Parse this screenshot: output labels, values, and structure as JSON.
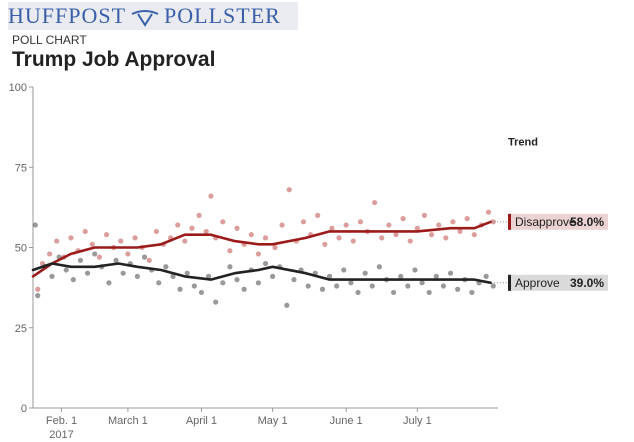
{
  "header": {
    "brand_left": "HUFFPOST",
    "brand_right": "POLLSTER",
    "kicker": "POLL CHART",
    "title": "Trump Job Approval"
  },
  "colors": {
    "disapprove_trend": "#9b1b1b",
    "disapprove_dots": "#c45c5c",
    "approve_trend": "#222222",
    "approve_dots": "#555555",
    "disapprove_label_bg": "#ecd3d3",
    "approve_label_bg": "#dadada",
    "brand": "#3a5fa8"
  },
  "chart_data": {
    "type": "scatter",
    "title": "Trump Job Approval",
    "xlabel": "",
    "ylabel": "",
    "ylim": [
      0,
      100
    ],
    "yticks": [
      0,
      25,
      50,
      75,
      100
    ],
    "xlim": [
      "2017-01-20",
      "2017-08-04"
    ],
    "xticks": [
      {
        "date": "2017-02-01",
        "label": "Feb. 1",
        "sub": "2017"
      },
      {
        "date": "2017-03-01",
        "label": "March 1"
      },
      {
        "date": "2017-04-01",
        "label": "April 1"
      },
      {
        "date": "2017-05-01",
        "label": "May 1"
      },
      {
        "date": "2017-06-01",
        "label": "June 1"
      },
      {
        "date": "2017-07-01",
        "label": "July 1"
      }
    ],
    "legend": {
      "title": "Trend",
      "placement": "right"
    },
    "series": [
      {
        "name": "Disapprove",
        "latest": "58.0%",
        "trend": [
          {
            "x": "2017-01-20",
            "y": 41
          },
          {
            "x": "2017-01-28",
            "y": 45
          },
          {
            "x": "2017-02-05",
            "y": 48
          },
          {
            "x": "2017-02-15",
            "y": 50
          },
          {
            "x": "2017-02-25",
            "y": 50
          },
          {
            "x": "2017-03-05",
            "y": 50
          },
          {
            "x": "2017-03-15",
            "y": 51
          },
          {
            "x": "2017-03-25",
            "y": 54
          },
          {
            "x": "2017-04-05",
            "y": 54
          },
          {
            "x": "2017-04-15",
            "y": 52
          },
          {
            "x": "2017-04-25",
            "y": 51
          },
          {
            "x": "2017-05-01",
            "y": 51
          },
          {
            "x": "2017-05-15",
            "y": 53
          },
          {
            "x": "2017-05-25",
            "y": 55
          },
          {
            "x": "2017-06-05",
            "y": 55
          },
          {
            "x": "2017-06-20",
            "y": 55
          },
          {
            "x": "2017-07-01",
            "y": 55
          },
          {
            "x": "2017-07-15",
            "y": 56
          },
          {
            "x": "2017-07-25",
            "y": 56
          },
          {
            "x": "2017-08-01",
            "y": 58
          }
        ],
        "points": [
          {
            "x": "2017-01-22",
            "y": 37
          },
          {
            "x": "2017-01-24",
            "y": 45
          },
          {
            "x": "2017-01-27",
            "y": 48
          },
          {
            "x": "2017-01-30",
            "y": 52
          },
          {
            "x": "2017-02-02",
            "y": 47
          },
          {
            "x": "2017-02-05",
            "y": 53
          },
          {
            "x": "2017-02-08",
            "y": 49
          },
          {
            "x": "2017-02-11",
            "y": 55
          },
          {
            "x": "2017-02-14",
            "y": 51
          },
          {
            "x": "2017-02-17",
            "y": 47
          },
          {
            "x": "2017-02-20",
            "y": 54
          },
          {
            "x": "2017-02-23",
            "y": 50
          },
          {
            "x": "2017-02-26",
            "y": 52
          },
          {
            "x": "2017-03-01",
            "y": 48
          },
          {
            "x": "2017-03-04",
            "y": 53
          },
          {
            "x": "2017-03-07",
            "y": 50
          },
          {
            "x": "2017-03-10",
            "y": 46
          },
          {
            "x": "2017-03-13",
            "y": 55
          },
          {
            "x": "2017-03-16",
            "y": 51
          },
          {
            "x": "2017-03-19",
            "y": 53
          },
          {
            "x": "2017-03-22",
            "y": 57
          },
          {
            "x": "2017-03-25",
            "y": 52
          },
          {
            "x": "2017-03-28",
            "y": 56
          },
          {
            "x": "2017-03-31",
            "y": 60
          },
          {
            "x": "2017-04-03",
            "y": 55
          },
          {
            "x": "2017-04-05",
            "y": 66
          },
          {
            "x": "2017-04-07",
            "y": 53
          },
          {
            "x": "2017-04-10",
            "y": 58
          },
          {
            "x": "2017-04-13",
            "y": 49
          },
          {
            "x": "2017-04-16",
            "y": 56
          },
          {
            "x": "2017-04-19",
            "y": 51
          },
          {
            "x": "2017-04-22",
            "y": 54
          },
          {
            "x": "2017-04-25",
            "y": 48
          },
          {
            "x": "2017-04-28",
            "y": 53
          },
          {
            "x": "2017-05-02",
            "y": 50
          },
          {
            "x": "2017-05-05",
            "y": 57
          },
          {
            "x": "2017-05-08",
            "y": 68
          },
          {
            "x": "2017-05-11",
            "y": 52
          },
          {
            "x": "2017-05-14",
            "y": 58
          },
          {
            "x": "2017-05-17",
            "y": 54
          },
          {
            "x": "2017-05-20",
            "y": 60
          },
          {
            "x": "2017-05-23",
            "y": 51
          },
          {
            "x": "2017-05-26",
            "y": 56
          },
          {
            "x": "2017-05-29",
            "y": 53
          },
          {
            "x": "2017-06-01",
            "y": 57
          },
          {
            "x": "2017-06-04",
            "y": 52
          },
          {
            "x": "2017-06-07",
            "y": 58
          },
          {
            "x": "2017-06-10",
            "y": 55
          },
          {
            "x": "2017-06-13",
            "y": 64
          },
          {
            "x": "2017-06-16",
            "y": 53
          },
          {
            "x": "2017-06-19",
            "y": 57
          },
          {
            "x": "2017-06-22",
            "y": 54
          },
          {
            "x": "2017-06-25",
            "y": 59
          },
          {
            "x": "2017-06-28",
            "y": 52
          },
          {
            "x": "2017-07-01",
            "y": 56
          },
          {
            "x": "2017-07-04",
            "y": 60
          },
          {
            "x": "2017-07-07",
            "y": 54
          },
          {
            "x": "2017-07-10",
            "y": 57
          },
          {
            "x": "2017-07-13",
            "y": 53
          },
          {
            "x": "2017-07-16",
            "y": 58
          },
          {
            "x": "2017-07-19",
            "y": 55
          },
          {
            "x": "2017-07-22",
            "y": 59
          },
          {
            "x": "2017-07-25",
            "y": 54
          },
          {
            "x": "2017-07-28",
            "y": 57
          },
          {
            "x": "2017-07-31",
            "y": 61
          },
          {
            "x": "2017-08-02",
            "y": 58
          }
        ]
      },
      {
        "name": "Approve",
        "latest": "39.0%",
        "trend": [
          {
            "x": "2017-01-20",
            "y": 43
          },
          {
            "x": "2017-01-28",
            "y": 45
          },
          {
            "x": "2017-02-05",
            "y": 44
          },
          {
            "x": "2017-02-15",
            "y": 44
          },
          {
            "x": "2017-02-25",
            "y": 45
          },
          {
            "x": "2017-03-05",
            "y": 44
          },
          {
            "x": "2017-03-15",
            "y": 43
          },
          {
            "x": "2017-03-25",
            "y": 41
          },
          {
            "x": "2017-04-05",
            "y": 40
          },
          {
            "x": "2017-04-15",
            "y": 42
          },
          {
            "x": "2017-04-25",
            "y": 43
          },
          {
            "x": "2017-05-01",
            "y": 44
          },
          {
            "x": "2017-05-15",
            "y": 42
          },
          {
            "x": "2017-05-25",
            "y": 40
          },
          {
            "x": "2017-06-05",
            "y": 40
          },
          {
            "x": "2017-06-20",
            "y": 40
          },
          {
            "x": "2017-07-01",
            "y": 40
          },
          {
            "x": "2017-07-15",
            "y": 40
          },
          {
            "x": "2017-07-25",
            "y": 40
          },
          {
            "x": "2017-08-01",
            "y": 39
          }
        ],
        "points": [
          {
            "x": "2017-01-21",
            "y": 57
          },
          {
            "x": "2017-01-22",
            "y": 35
          },
          {
            "x": "2017-01-25",
            "y": 44
          },
          {
            "x": "2017-01-28",
            "y": 41
          },
          {
            "x": "2017-01-31",
            "y": 47
          },
          {
            "x": "2017-02-03",
            "y": 43
          },
          {
            "x": "2017-02-06",
            "y": 40
          },
          {
            "x": "2017-02-09",
            "y": 46
          },
          {
            "x": "2017-02-12",
            "y": 42
          },
          {
            "x": "2017-02-15",
            "y": 48
          },
          {
            "x": "2017-02-18",
            "y": 44
          },
          {
            "x": "2017-02-21",
            "y": 39
          },
          {
            "x": "2017-02-24",
            "y": 46
          },
          {
            "x": "2017-02-27",
            "y": 42
          },
          {
            "x": "2017-03-02",
            "y": 45
          },
          {
            "x": "2017-03-05",
            "y": 41
          },
          {
            "x": "2017-03-08",
            "y": 47
          },
          {
            "x": "2017-03-11",
            "y": 43
          },
          {
            "x": "2017-03-14",
            "y": 39
          },
          {
            "x": "2017-03-17",
            "y": 44
          },
          {
            "x": "2017-03-20",
            "y": 41
          },
          {
            "x": "2017-03-23",
            "y": 37
          },
          {
            "x": "2017-03-26",
            "y": 42
          },
          {
            "x": "2017-03-29",
            "y": 38
          },
          {
            "x": "2017-04-01",
            "y": 36
          },
          {
            "x": "2017-04-04",
            "y": 41
          },
          {
            "x": "2017-04-07",
            "y": 33
          },
          {
            "x": "2017-04-10",
            "y": 39
          },
          {
            "x": "2017-04-13",
            "y": 44
          },
          {
            "x": "2017-04-16",
            "y": 40
          },
          {
            "x": "2017-04-19",
            "y": 37
          },
          {
            "x": "2017-04-22",
            "y": 43
          },
          {
            "x": "2017-04-25",
            "y": 39
          },
          {
            "x": "2017-04-28",
            "y": 45
          },
          {
            "x": "2017-05-01",
            "y": 41
          },
          {
            "x": "2017-05-04",
            "y": 44
          },
          {
            "x": "2017-05-07",
            "y": 32
          },
          {
            "x": "2017-05-10",
            "y": 40
          },
          {
            "x": "2017-05-13",
            "y": 43
          },
          {
            "x": "2017-05-16",
            "y": 38
          },
          {
            "x": "2017-05-19",
            "y": 42
          },
          {
            "x": "2017-05-22",
            "y": 37
          },
          {
            "x": "2017-05-25",
            "y": 41
          },
          {
            "x": "2017-05-28",
            "y": 38
          },
          {
            "x": "2017-05-31",
            "y": 43
          },
          {
            "x": "2017-06-03",
            "y": 39
          },
          {
            "x": "2017-06-06",
            "y": 36
          },
          {
            "x": "2017-06-09",
            "y": 42
          },
          {
            "x": "2017-06-12",
            "y": 38
          },
          {
            "x": "2017-06-15",
            "y": 44
          },
          {
            "x": "2017-06-18",
            "y": 40
          },
          {
            "x": "2017-06-21",
            "y": 36
          },
          {
            "x": "2017-06-24",
            "y": 41
          },
          {
            "x": "2017-06-27",
            "y": 38
          },
          {
            "x": "2017-06-30",
            "y": 43
          },
          {
            "x": "2017-07-03",
            "y": 39
          },
          {
            "x": "2017-07-06",
            "y": 36
          },
          {
            "x": "2017-07-09",
            "y": 41
          },
          {
            "x": "2017-07-12",
            "y": 38
          },
          {
            "x": "2017-07-15",
            "y": 42
          },
          {
            "x": "2017-07-18",
            "y": 37
          },
          {
            "x": "2017-07-21",
            "y": 40
          },
          {
            "x": "2017-07-24",
            "y": 36
          },
          {
            "x": "2017-07-27",
            "y": 39
          },
          {
            "x": "2017-07-30",
            "y": 41
          },
          {
            "x": "2017-08-02",
            "y": 38
          }
        ]
      }
    ]
  }
}
